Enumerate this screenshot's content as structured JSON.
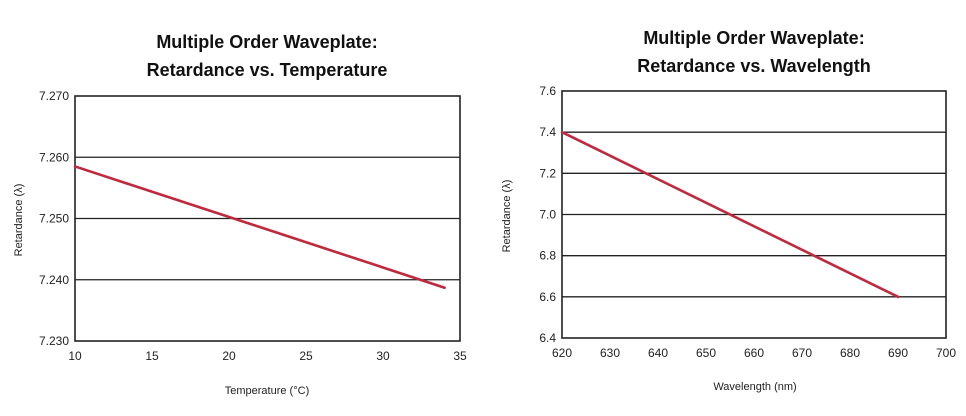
{
  "chart_data": [
    {
      "type": "line",
      "title_lines": [
        "Multiple Order Waveplate:",
        "Retardance vs. Temperature"
      ],
      "xlabel": "Temperature (°C)",
      "ylabel": "Retardance (λ)",
      "xlim": [
        10,
        35
      ],
      "ylim": [
        7.23,
        7.27
      ],
      "xticks": [
        "10",
        "15",
        "20",
        "25",
        "30",
        "35"
      ],
      "yticks": [
        "7.230",
        "7.240",
        "7.250",
        "7.260",
        "7.270"
      ],
      "grid": "horizontal",
      "series": [
        {
          "x": [
            10,
            34
          ],
          "y": [
            7.2585,
            7.2387
          ]
        }
      ]
    },
    {
      "type": "line",
      "title_lines": [
        "Multiple Order Waveplate:",
        "Retardance vs. Wavelength"
      ],
      "xlabel": "Wavelength (nm)",
      "ylabel": "Retardance (λ)",
      "xlim": [
        620,
        700
      ],
      "ylim": [
        6.4,
        7.6
      ],
      "xticks": [
        "620",
        "630",
        "640",
        "650",
        "660",
        "670",
        "680",
        "690",
        "700"
      ],
      "yticks": [
        "6.4",
        "6.6",
        "6.8",
        "7.0",
        "7.2",
        "7.4",
        "7.6"
      ],
      "grid": "horizontal",
      "series": [
        {
          "x": [
            620,
            690
          ],
          "y": [
            7.4,
            6.6
          ]
        }
      ]
    }
  ],
  "colors": {
    "line": "#c0283e",
    "axis": "#222222"
  }
}
